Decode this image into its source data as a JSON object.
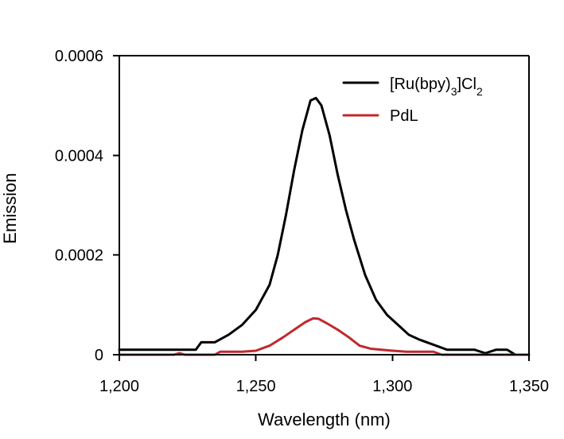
{
  "chart_data": {
    "type": "line",
    "xlabel": "Wavelength (nm)",
    "ylabel": "Emission",
    "xlim": [
      1200,
      1350
    ],
    "ylim": [
      0,
      0.0006
    ],
    "x_ticks": [
      1200,
      1250,
      1300,
      1350
    ],
    "x_tick_labels": [
      "1,200",
      "1,250",
      "1,300",
      "1,350"
    ],
    "y_ticks": [
      0,
      0.0002,
      0.0004,
      0.0006
    ],
    "y_tick_labels": [
      "0",
      "0.0002",
      "0.0004",
      "0.0006"
    ],
    "grid": false,
    "legend_position": "top-right",
    "series": [
      {
        "name": "[Ru(bpy)3]Cl2",
        "label_main": "[Ru(bpy)",
        "label_sub1": "3",
        "label_mid": "]Cl",
        "label_sub2": "2",
        "color": "#000000",
        "points": [
          [
            1200,
            1e-05
          ],
          [
            1205,
            1e-05
          ],
          [
            1210,
            1e-05
          ],
          [
            1215,
            1e-05
          ],
          [
            1220,
            1e-05
          ],
          [
            1225,
            1e-05
          ],
          [
            1228,
            1e-05
          ],
          [
            1230,
            2.5e-05
          ],
          [
            1235,
            2.5e-05
          ],
          [
            1240,
            4e-05
          ],
          [
            1245,
            6e-05
          ],
          [
            1250,
            9e-05
          ],
          [
            1255,
            0.00014
          ],
          [
            1258,
            0.0002
          ],
          [
            1261,
            0.00028
          ],
          [
            1264,
            0.00037
          ],
          [
            1267,
            0.00045
          ],
          [
            1270,
            0.00051
          ],
          [
            1272,
            0.000515
          ],
          [
            1274,
            0.0005
          ],
          [
            1277,
            0.00044
          ],
          [
            1280,
            0.00036
          ],
          [
            1283,
            0.00029
          ],
          [
            1286,
            0.00023
          ],
          [
            1290,
            0.00016
          ],
          [
            1294,
            0.00011
          ],
          [
            1298,
            8e-05
          ],
          [
            1302,
            6e-05
          ],
          [
            1306,
            4e-05
          ],
          [
            1310,
            3e-05
          ],
          [
            1315,
            2e-05
          ],
          [
            1320,
            1e-05
          ],
          [
            1325,
            1e-05
          ],
          [
            1330,
            1e-05
          ],
          [
            1334,
            3e-06
          ],
          [
            1338,
            1e-05
          ],
          [
            1342,
            1e-05
          ],
          [
            1345,
            0.0
          ]
        ]
      },
      {
        "name": "PdL",
        "label_main": "PdL",
        "color": "#c0282d",
        "points": [
          [
            1200,
            0.0
          ],
          [
            1205,
            0.0
          ],
          [
            1210,
            0.0
          ],
          [
            1215,
            0.0
          ],
          [
            1220,
            0.0
          ],
          [
            1222,
            3e-06
          ],
          [
            1224,
            0.0
          ],
          [
            1230,
            0.0
          ],
          [
            1235,
            0.0
          ],
          [
            1237,
            6e-06
          ],
          [
            1240,
            6e-06
          ],
          [
            1245,
            6e-06
          ],
          [
            1250,
            8e-06
          ],
          [
            1255,
            1.8e-05
          ],
          [
            1260,
            3.5e-05
          ],
          [
            1264,
            5e-05
          ],
          [
            1268,
            6.5e-05
          ],
          [
            1271,
            7.3e-05
          ],
          [
            1273,
            7.2e-05
          ],
          [
            1276,
            6.3e-05
          ],
          [
            1280,
            5e-05
          ],
          [
            1284,
            3.5e-05
          ],
          [
            1288,
            1.8e-05
          ],
          [
            1292,
            1.2e-05
          ],
          [
            1296,
            1e-05
          ],
          [
            1300,
            8e-06
          ],
          [
            1305,
            6e-06
          ],
          [
            1310,
            6e-06
          ],
          [
            1315,
            6e-06
          ],
          [
            1318,
            0.0
          ],
          [
            1322,
            0.0
          ],
          [
            1325,
            0.0
          ],
          [
            1330,
            0.0
          ],
          [
            1335,
            0.0
          ],
          [
            1340,
            0.0
          ],
          [
            1345,
            0.0
          ],
          [
            1350,
            0.0
          ]
        ]
      }
    ]
  }
}
